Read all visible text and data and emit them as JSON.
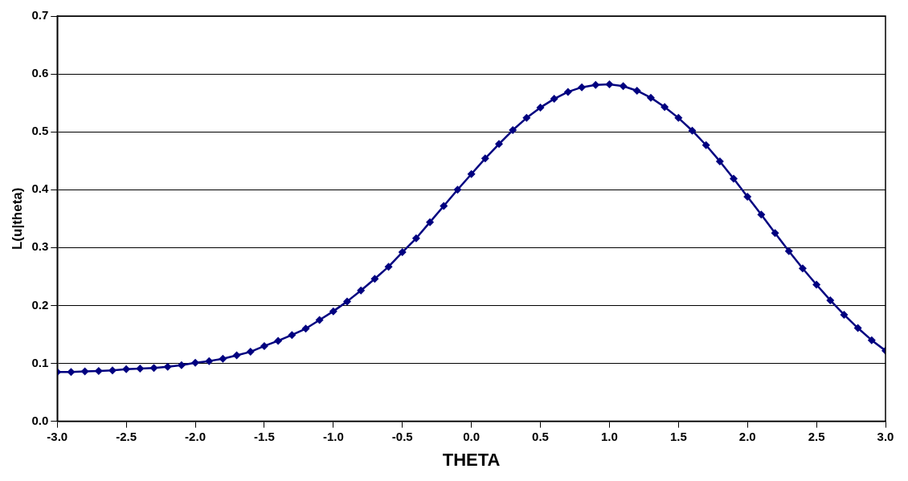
{
  "chart_data": {
    "type": "line",
    "xlabel": "THETA",
    "ylabel": "L(u|theta)",
    "x": [
      -3.0,
      -2.9,
      -2.8,
      -2.7,
      -2.6,
      -2.5,
      -2.4,
      -2.3,
      -2.2,
      -2.1,
      -2.0,
      -1.9,
      -1.8,
      -1.7,
      -1.6,
      -1.5,
      -1.4,
      -1.3,
      -1.2,
      -1.1,
      -1.0,
      -0.9,
      -0.8,
      -0.7,
      -0.6,
      -0.5,
      -0.4,
      -0.3,
      -0.2,
      -0.1,
      0.0,
      0.1,
      0.2,
      0.3,
      0.4,
      0.5,
      0.6,
      0.7,
      0.8,
      0.9,
      1.0,
      1.1,
      1.2,
      1.3,
      1.4,
      1.5,
      1.6,
      1.7,
      1.8,
      1.9,
      2.0,
      2.1,
      2.2,
      2.3,
      2.4,
      2.5,
      2.6,
      2.7,
      2.8,
      2.9,
      3.0
    ],
    "series": [
      {
        "color": "#000080",
        "values": [
          0.085,
          0.085,
          0.086,
          0.087,
          0.088,
          0.09,
          0.091,
          0.092,
          0.094,
          0.097,
          0.101,
          0.104,
          0.108,
          0.114,
          0.12,
          0.13,
          0.139,
          0.149,
          0.16,
          0.175,
          0.19,
          0.207,
          0.226,
          0.246,
          0.267,
          0.292,
          0.316,
          0.344,
          0.372,
          0.4,
          0.427,
          0.454,
          0.479,
          0.503,
          0.524,
          0.542,
          0.557,
          0.569,
          0.577,
          0.581,
          0.582,
          0.579,
          0.571,
          0.559,
          0.543,
          0.524,
          0.502,
          0.477,
          0.449,
          0.419,
          0.388,
          0.357,
          0.325,
          0.294,
          0.264,
          0.236,
          0.209,
          0.184,
          0.161,
          0.14,
          0.122
        ]
      }
    ],
    "xlim": [
      -3.0,
      3.0
    ],
    "xticks": [
      {
        "value": -3,
        "label": "-3.0"
      },
      {
        "value": -2.5,
        "label": "-2.5"
      },
      {
        "value": -2,
        "label": "-2.0"
      },
      {
        "value": -1.5,
        "label": "-1.5"
      },
      {
        "value": -1,
        "label": "-1.0"
      },
      {
        "value": -0.5,
        "label": "-0.5"
      },
      {
        "value": 0,
        "label": "0.0"
      },
      {
        "value": 0.5,
        "label": "0.5"
      },
      {
        "value": 1,
        "label": "1.0"
      },
      {
        "value": 1.5,
        "label": "1.5"
      },
      {
        "value": 2,
        "label": "2.0"
      },
      {
        "value": 2.5,
        "label": "2.5"
      },
      {
        "value": 3,
        "label": "3.0"
      }
    ],
    "ylim": [
      0,
      0.7
    ],
    "yticks": [
      {
        "value": 0,
        "label": "0.0"
      },
      0.1,
      0.2,
      0.3,
      0.4,
      0.5,
      0.6,
      0.7
    ],
    "grid": "y",
    "legend": false,
    "marker": "diamond",
    "line_style": "solid"
  }
}
